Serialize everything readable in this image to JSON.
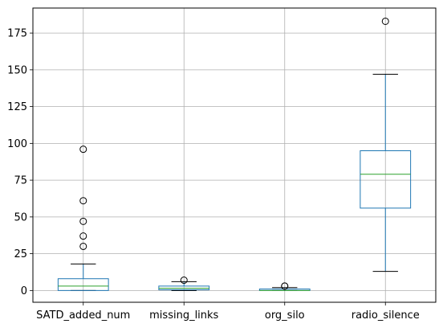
{
  "chart_data": {
    "type": "box",
    "title": "",
    "xlabel": "",
    "ylabel": "",
    "ylim": [
      -8,
      192
    ],
    "yticks": [
      0,
      25,
      50,
      75,
      100,
      125,
      150,
      175
    ],
    "grid": true,
    "categories": [
      "SATD_added_num",
      "missing_links",
      "org_silo",
      "radio_silence"
    ],
    "boxes": [
      {
        "name": "SATD_added_num",
        "whislo": 0,
        "q1": 0,
        "med": 3,
        "q3": 8,
        "whishi": 18,
        "fliers": [
          30,
          37,
          47,
          61,
          96
        ]
      },
      {
        "name": "missing_links",
        "whislo": 0,
        "q1": 0.5,
        "med": 1.5,
        "q3": 3,
        "whishi": 6,
        "fliers": [
          7
        ]
      },
      {
        "name": "org_silo",
        "whislo": 0,
        "q1": 0,
        "med": 0,
        "q3": 1,
        "whishi": 2,
        "fliers": [
          3,
          3
        ]
      },
      {
        "name": "radio_silence",
        "whislo": 13,
        "q1": 56,
        "med": 79,
        "q3": 95,
        "whishi": 147,
        "fliers": [
          183
        ]
      }
    ],
    "colors": {
      "box": "#1f77b4",
      "median": "#2ca02c",
      "whisker": "#1f77b4",
      "cap": "#000000",
      "grid": "#b0b0b0",
      "flier": "#000000"
    }
  }
}
